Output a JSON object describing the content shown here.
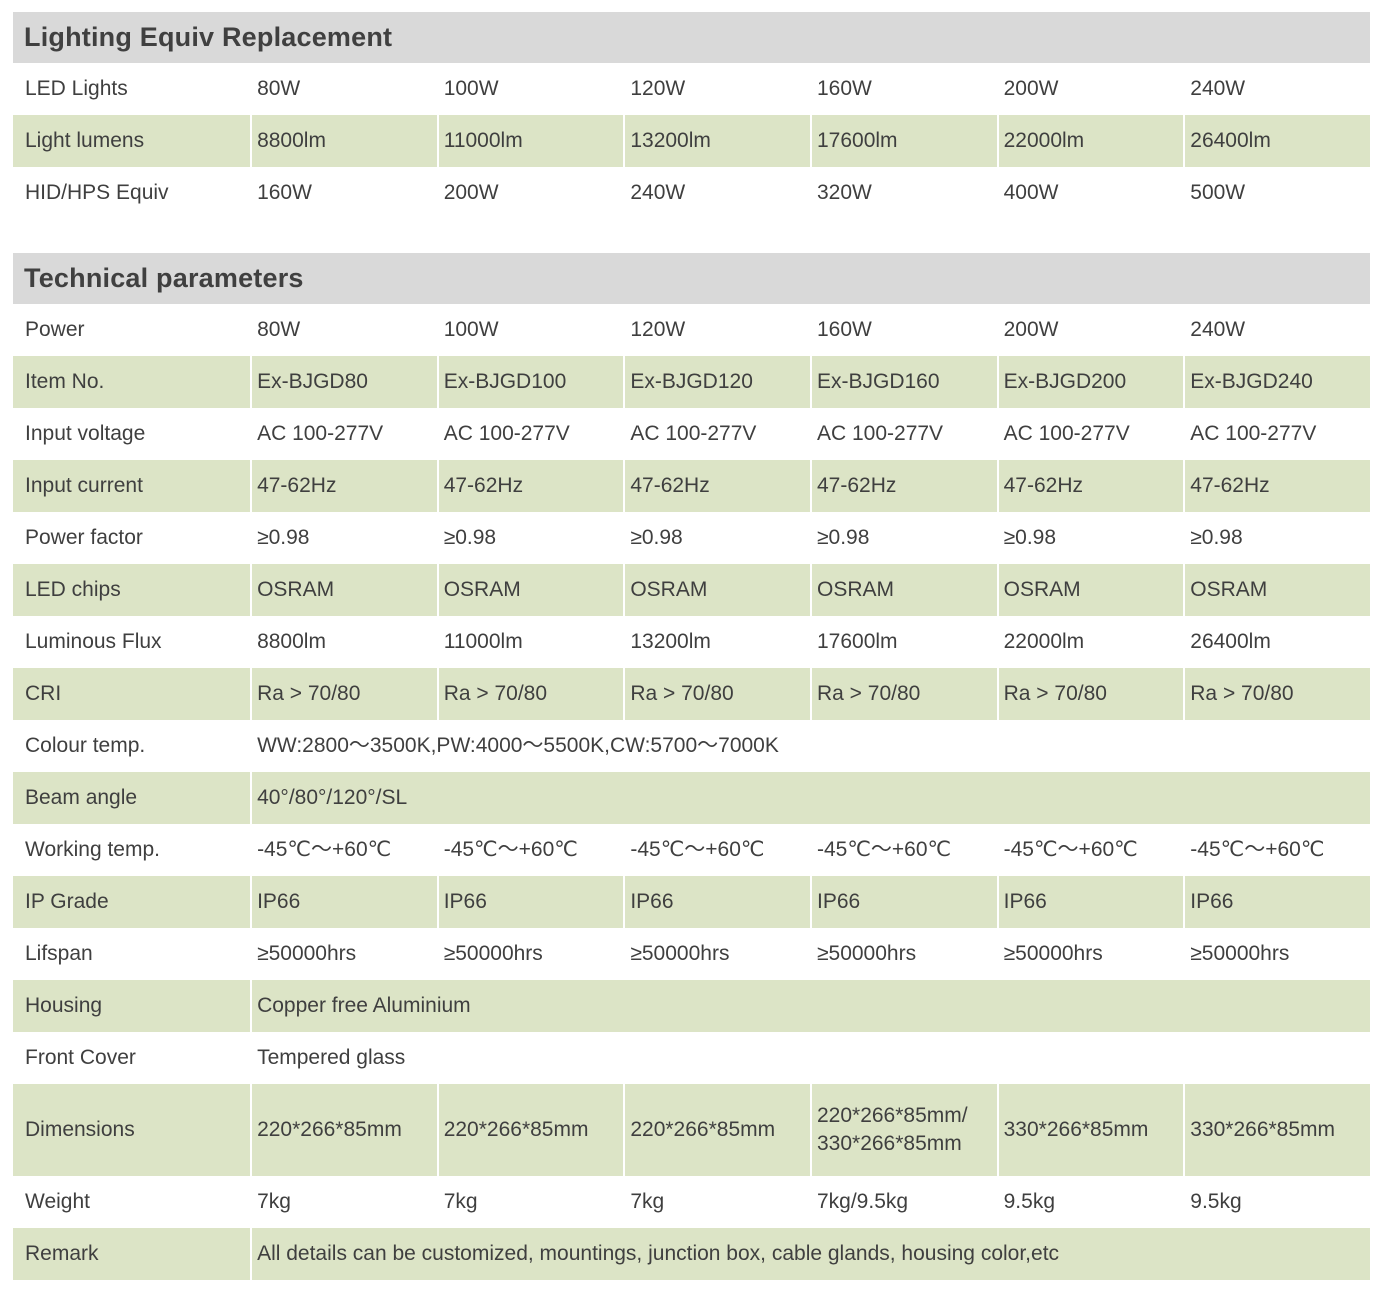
{
  "colors": {
    "row_shade_green": "#dce4c6",
    "section_header_gray": "#d9d9d9",
    "text": "#3f3f3f",
    "background": "#ffffff"
  },
  "sections": [
    {
      "title": "Lighting Equiv Replacement",
      "rows": [
        {
          "label": "LED Lights",
          "values": [
            "80W",
            "100W",
            "120W",
            "160W",
            "200W",
            "240W"
          ]
        },
        {
          "label": "Light lumens",
          "values": [
            "8800lm",
            "11000lm",
            "13200lm",
            "17600lm",
            "22000lm",
            "26400lm"
          ]
        },
        {
          "label": "HID/HPS Equiv",
          "values": [
            "160W",
            "200W",
            "240W",
            "320W",
            "400W",
            "500W"
          ]
        }
      ]
    },
    {
      "title": "Technical parameters",
      "rows": [
        {
          "label": "Power",
          "values": [
            "80W",
            "100W",
            "120W",
            "160W",
            "200W",
            "240W"
          ]
        },
        {
          "label": "Item No.",
          "values": [
            "Ex-BJGD80",
            "Ex-BJGD100",
            "Ex-BJGD120",
            "Ex-BJGD160",
            "Ex-BJGD200",
            "Ex-BJGD240"
          ]
        },
        {
          "label": "Input voltage",
          "values": [
            "AC 100-277V",
            "AC 100-277V",
            "AC 100-277V",
            "AC 100-277V",
            "AC 100-277V",
            "AC 100-277V"
          ]
        },
        {
          "label": "Input current",
          "values": [
            "47-62Hz",
            "47-62Hz",
            "47-62Hz",
            "47-62Hz",
            "47-62Hz",
            "47-62Hz"
          ]
        },
        {
          "label": "Power factor",
          "values": [
            "≥0.98",
            "≥0.98",
            "≥0.98",
            "≥0.98",
            "≥0.98",
            "≥0.98"
          ]
        },
        {
          "label": "LED chips",
          "values": [
            "OSRAM",
            "OSRAM",
            "OSRAM",
            "OSRAM",
            "OSRAM",
            "OSRAM"
          ]
        },
        {
          "label": "Luminous Flux",
          "values": [
            "8800lm",
            "11000lm",
            "13200lm",
            "17600lm",
            "22000lm",
            "26400lm"
          ]
        },
        {
          "label": "CRI",
          "values": [
            "Ra > 70/80",
            "Ra > 70/80",
            "Ra > 70/80",
            "Ra > 70/80",
            "Ra > 70/80",
            "Ra > 70/80"
          ]
        },
        {
          "label": "Colour temp.",
          "span": "WW:2800～3500K,PW:4000～5500K,CW:5700～7000K"
        },
        {
          "label": "Beam angle",
          "span": "40°/80°/120°/SL"
        },
        {
          "label": "Working temp.",
          "values": [
            "-45℃～+60℃",
            "-45℃～+60℃",
            "-45℃～+60℃",
            "-45℃～+60℃",
            "-45℃～+60℃",
            "-45℃～+60℃"
          ]
        },
        {
          "label": "IP Grade",
          "values": [
            "IP66",
            "IP66",
            "IP66",
            "IP66",
            "IP66",
            "IP66"
          ]
        },
        {
          "label": "Lifspan",
          "values": [
            "≥50000hrs",
            "≥50000hrs",
            "≥50000hrs",
            "≥50000hrs",
            "≥50000hrs",
            "≥50000hrs"
          ]
        },
        {
          "label": "Housing",
          "span": "Copper free Aluminium"
        },
        {
          "label": "Front Cover",
          "span": "Tempered glass"
        },
        {
          "label": "Dimensions",
          "values": [
            "220*266*85mm",
            "220*266*85mm",
            "220*266*85mm",
            "220*266*85mm/\n330*266*85mm",
            "330*266*85mm",
            "330*266*85mm"
          ]
        },
        {
          "label": "Weight",
          "values": [
            "7kg",
            "7kg",
            "7kg",
            "7kg/9.5kg",
            "9.5kg",
            "9.5kg"
          ]
        },
        {
          "label": "Remark",
          "span": "All details can be customized, mountings, junction box, cable glands, housing color,etc"
        }
      ]
    }
  ]
}
